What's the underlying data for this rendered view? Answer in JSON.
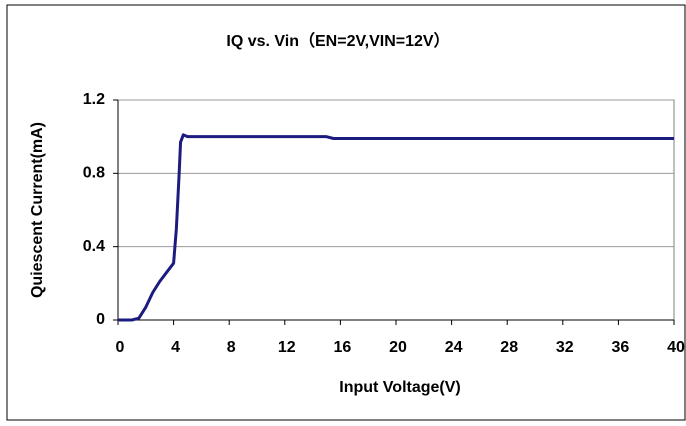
{
  "chart_data": {
    "type": "line",
    "title": "IQ vs. Vin（EN=2V,VIN=12V）",
    "xlabel": "Input Voltage(V)",
    "ylabel": "Quiescent Current(mA)",
    "x": [
      0,
      1,
      1.5,
      2,
      2.5,
      3,
      3.5,
      4,
      4.2,
      4.4,
      4.5,
      4.7,
      5,
      15,
      15.5,
      40
    ],
    "series": [
      {
        "name": "IQ",
        "color": "#1c1c80",
        "values": [
          0,
          0,
          0.01,
          0.07,
          0.15,
          0.21,
          0.26,
          0.31,
          0.5,
          0.8,
          0.97,
          1.01,
          1.0,
          1.0,
          0.99,
          0.99
        ]
      }
    ],
    "xlim": [
      0,
      40
    ],
    "xticks": [
      0,
      4,
      8,
      12,
      16,
      20,
      24,
      28,
      32,
      36,
      40
    ],
    "ylim": [
      0,
      1.2
    ],
    "yticks": [
      0,
      0.4,
      0.8,
      1.2
    ],
    "grid": true
  }
}
